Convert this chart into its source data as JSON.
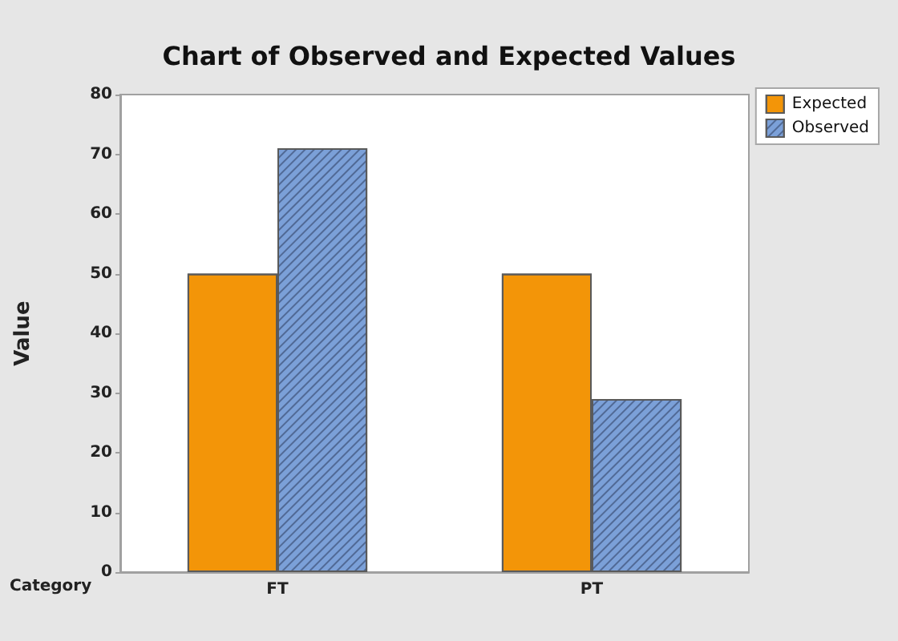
{
  "chart_data": {
    "type": "bar",
    "title": "Chart of Observed and Expected Values",
    "xlabel": "Category",
    "ylabel": "Value",
    "categories": [
      "FT",
      "PT"
    ],
    "series": [
      {
        "name": "Expected",
        "color": "#f39508",
        "values": [
          50,
          50
        ]
      },
      {
        "name": "Observed",
        "color": "#7ba0d8",
        "values": [
          71,
          29
        ]
      }
    ],
    "ylim": [
      0,
      80
    ],
    "yticks": [
      0,
      10,
      20,
      30,
      40,
      50,
      60,
      70,
      80
    ],
    "grid": false,
    "legend": "top right"
  }
}
